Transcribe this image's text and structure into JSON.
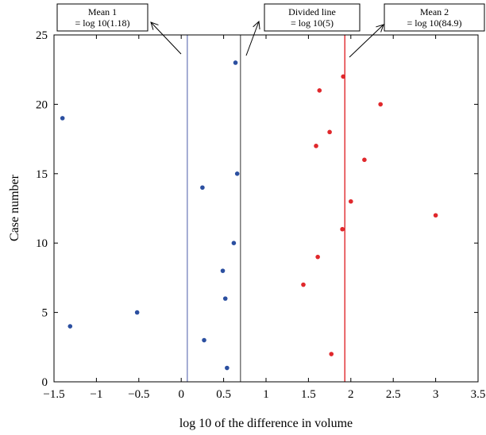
{
  "chart_data": {
    "type": "scatter",
    "xlabel": "log 10 of the difference in volume",
    "ylabel": "Case number",
    "xlim": [
      -1.5,
      3.5
    ],
    "ylim": [
      0,
      25
    ],
    "xticks": [
      -1.5,
      -1,
      -0.5,
      0,
      0.5,
      1,
      1.5,
      2,
      2.5,
      3,
      3.5
    ],
    "xtick_labels": [
      "−1.5",
      "−1",
      "−0.5",
      "0",
      "0.5",
      "1",
      "1.5",
      "2",
      "2.5",
      "3",
      "3.5"
    ],
    "yticks": [
      0,
      5,
      10,
      15,
      20,
      25
    ],
    "ytick_labels": [
      "0",
      "5",
      "10",
      "15",
      "20",
      "25"
    ],
    "grid": false,
    "series": [
      {
        "color": "#2b4fa0",
        "points": [
          {
            "x": -1.4,
            "y": 19
          },
          {
            "x": -1.31,
            "y": 4
          },
          {
            "x": -0.52,
            "y": 5
          },
          {
            "x": 0.25,
            "y": 14
          },
          {
            "x": 0.27,
            "y": 3
          },
          {
            "x": 0.49,
            "y": 8
          },
          {
            "x": 0.52,
            "y": 6
          },
          {
            "x": 0.54,
            "y": 1
          },
          {
            "x": 0.62,
            "y": 10
          },
          {
            "x": 0.64,
            "y": 23
          },
          {
            "x": 0.66,
            "y": 15
          }
        ]
      },
      {
        "color": "#e0282c",
        "points": [
          {
            "x": 1.44,
            "y": 7
          },
          {
            "x": 1.59,
            "y": 17
          },
          {
            "x": 1.61,
            "y": 9
          },
          {
            "x": 1.63,
            "y": 21
          },
          {
            "x": 1.75,
            "y": 18
          },
          {
            "x": 1.77,
            "y": 2
          },
          {
            "x": 1.9,
            "y": 11
          },
          {
            "x": 1.91,
            "y": 22
          },
          {
            "x": 2.0,
            "y": 13
          },
          {
            "x": 2.16,
            "y": 16
          },
          {
            "x": 2.35,
            "y": 20
          },
          {
            "x": 3.0,
            "y": 12
          }
        ]
      }
    ],
    "vlines": [
      {
        "x": 0.072,
        "color": "#4a5ba8"
      },
      {
        "x": 0.699,
        "color": "#333333"
      },
      {
        "x": 1.929,
        "color": "#e0282c"
      }
    ],
    "annotations": [
      {
        "line1": "Mean 1",
        "line2": "= log 10(1.18)"
      },
      {
        "line1": "Divided line",
        "line2": "= log 10(5)"
      },
      {
        "line1": "Mean 2",
        "line2": "= log 10(84.9)"
      }
    ]
  }
}
